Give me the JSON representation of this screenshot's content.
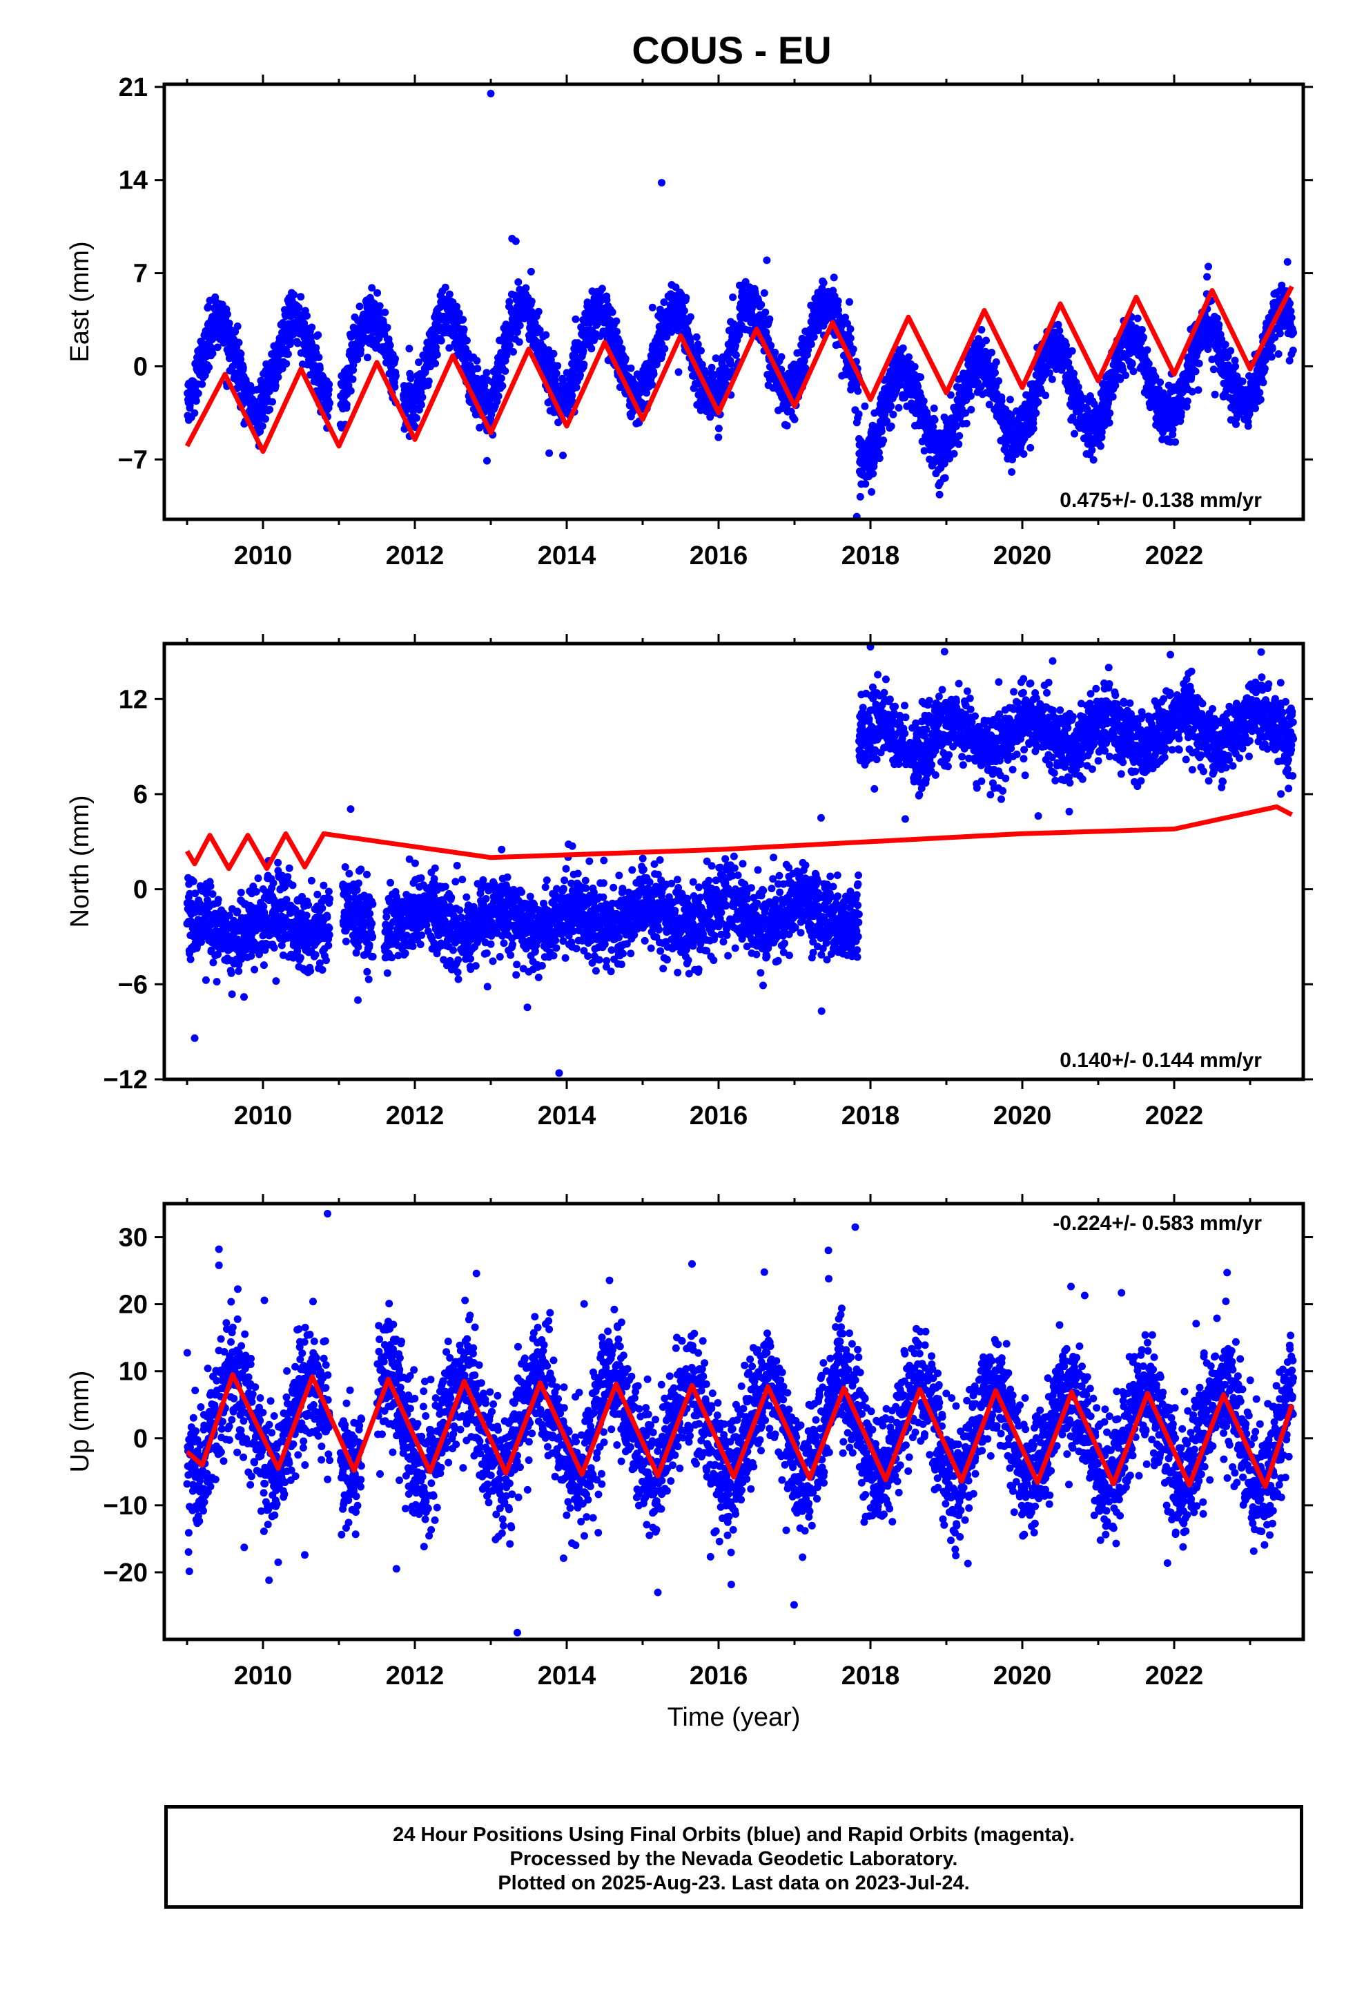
{
  "title": "COUS - EU",
  "caption": {
    "line1": "24 Hour Positions Using Final Orbits (blue) and Rapid Orbits (magenta).",
    "line2": "Processed by the Nevada Geodetic Laboratory.",
    "line3": "Plotted on 2025-Aug-23. Last data on 2023-Jul-24."
  },
  "colors": {
    "observations": "#0000ff",
    "model": "#ff0000",
    "axes": "#000000"
  },
  "chart_data": [
    {
      "type": "scatter",
      "component": "east",
      "title": "COUS - EU",
      "xlabel": "",
      "ylabel": "East (mm)",
      "xlim": [
        2008.7,
        2023.7
      ],
      "ylim": [
        -11.5,
        21.2
      ],
      "x_ticks": [
        2010,
        2012,
        2014,
        2016,
        2018,
        2020,
        2022
      ],
      "y_ticks": [
        -7,
        0,
        7,
        14,
        21
      ],
      "y_tick_labels": [
        "−7",
        "0",
        "7",
        "14",
        "21"
      ],
      "rate_label": "0.475+/- 0.138 mm/yr",
      "rate_position": "bottom-right",
      "grid": false,
      "observations": {
        "name": "24 hour positions (final orbits)",
        "date_range": [
          "2009-01",
          "2023-07-24"
        ],
        "segments": [
          {
            "start": 2009.0,
            "end": 2017.85,
            "annual_amplitude": 3.3,
            "peak_phase": 0.42,
            "offset_start": 0.0,
            "offset_end": 1.5,
            "noise_sd": 1.0
          },
          {
            "start": 2017.85,
            "end": 2023.57,
            "annual_amplitude": 3.2,
            "peak_phase": 0.42,
            "offset_start": -4.0,
            "offset_end": 0.8,
            "noise_sd": 1.0
          }
        ],
        "gaps": [
          [
            2010.88,
            2011.02
          ],
          [
            2011.75,
            2011.85
          ]
        ],
        "outliers": [
          {
            "x": 2013.0,
            "y": 20.5
          },
          {
            "x": 2015.25,
            "y": 13.8
          },
          {
            "x": 2013.28,
            "y": 9.6
          },
          {
            "x": 2013.33,
            "y": 9.4
          },
          {
            "x": 2017.82,
            "y": -11.3
          },
          {
            "x": 2012.95,
            "y": -7.1
          },
          {
            "x": 2013.95,
            "y": -6.7
          },
          {
            "x": 2022.45,
            "y": 7.5
          }
        ]
      },
      "model": {
        "name": "model fit",
        "points": [
          {
            "x": 2009.0,
            "y": -6.0
          },
          {
            "x": 2009.5,
            "y": -0.6
          },
          {
            "x": 2010.0,
            "y": -6.4
          },
          {
            "x": 2010.5,
            "y": -0.2
          },
          {
            "x": 2011.0,
            "y": -6.0
          },
          {
            "x": 2011.5,
            "y": 0.3
          },
          {
            "x": 2012.0,
            "y": -5.5
          },
          {
            "x": 2012.5,
            "y": 0.8
          },
          {
            "x": 2013.0,
            "y": -5.0
          },
          {
            "x": 2013.5,
            "y": 1.3
          },
          {
            "x": 2014.0,
            "y": -4.5
          },
          {
            "x": 2014.5,
            "y": 1.8
          },
          {
            "x": 2015.0,
            "y": -4.0
          },
          {
            "x": 2015.5,
            "y": 2.3
          },
          {
            "x": 2016.0,
            "y": -3.5
          },
          {
            "x": 2016.5,
            "y": 2.8
          },
          {
            "x": 2017.0,
            "y": -3.0
          },
          {
            "x": 2017.5,
            "y": 3.3
          },
          {
            "x": 2018.0,
            "y": -2.5
          },
          {
            "x": 2018.5,
            "y": 3.7
          },
          {
            "x": 2019.0,
            "y": -2.0
          },
          {
            "x": 2019.5,
            "y": 4.2
          },
          {
            "x": 2020.0,
            "y": -1.6
          },
          {
            "x": 2020.5,
            "y": 4.7
          },
          {
            "x": 2021.0,
            "y": -1.1
          },
          {
            "x": 2021.5,
            "y": 5.2
          },
          {
            "x": 2022.0,
            "y": -0.6
          },
          {
            "x": 2022.5,
            "y": 5.7
          },
          {
            "x": 2023.0,
            "y": -0.2
          },
          {
            "x": 2023.55,
            "y": 6.0
          }
        ]
      }
    },
    {
      "type": "scatter",
      "component": "north",
      "xlabel": "",
      "ylabel": "North (mm)",
      "xlim": [
        2008.7,
        2023.7
      ],
      "ylim": [
        -12,
        15.5
      ],
      "x_ticks": [
        2010,
        2012,
        2014,
        2016,
        2018,
        2020,
        2022
      ],
      "y_ticks": [
        -12,
        -6,
        0,
        6,
        12
      ],
      "y_tick_labels": [
        "−12",
        "−6",
        "0",
        "6",
        "12"
      ],
      "rate_label": "0.140+/- 0.144 mm/yr",
      "rate_position": "bottom-right",
      "grid": false,
      "observations": {
        "name": "24 hour positions (final orbits)",
        "date_range": [
          "2009-01",
          "2023-07-24"
        ],
        "segments": [
          {
            "start": 2009.0,
            "end": 2017.85,
            "annual_amplitude": 0.8,
            "peak_phase": 0.1,
            "offset_start": -2.4,
            "offset_end": -1.4,
            "noise_sd": 1.2
          },
          {
            "start": 2017.85,
            "end": 2023.57,
            "annual_amplitude": 1.0,
            "peak_phase": 0.1,
            "offset_start": 9.4,
            "offset_end": 10.3,
            "noise_sd": 1.1
          }
        ],
        "gaps": [
          [
            2010.88,
            2011.05
          ],
          [
            2011.45,
            2011.6
          ]
        ],
        "outliers": [
          {
            "x": 2009.1,
            "y": -9.4
          },
          {
            "x": 2013.9,
            "y": -11.6
          },
          {
            "x": 2018.0,
            "y": 15.3
          },
          {
            "x": 2021.95,
            "y": 14.8
          },
          {
            "x": 2020.4,
            "y": 14.4
          },
          {
            "x": 2011.25,
            "y": -7.0
          },
          {
            "x": 2009.75,
            "y": -6.8
          },
          {
            "x": 2017.35,
            "y": 4.5
          }
        ]
      },
      "model": {
        "name": "model fit",
        "points": [
          {
            "x": 2009.0,
            "y": 2.4
          },
          {
            "x": 2009.1,
            "y": 1.6
          },
          {
            "x": 2009.3,
            "y": 3.4
          },
          {
            "x": 2009.55,
            "y": 1.3
          },
          {
            "x": 2009.8,
            "y": 3.4
          },
          {
            "x": 2010.05,
            "y": 1.3
          },
          {
            "x": 2010.3,
            "y": 3.5
          },
          {
            "x": 2010.55,
            "y": 1.4
          },
          {
            "x": 2010.8,
            "y": 3.5
          },
          {
            "x": 2013.0,
            "y": 2.0
          },
          {
            "x": 2016.0,
            "y": 2.5
          },
          {
            "x": 2018.0,
            "y": 3.0
          },
          {
            "x": 2020.0,
            "y": 3.5
          },
          {
            "x": 2022.0,
            "y": 3.8
          },
          {
            "x": 2023.35,
            "y": 5.2
          },
          {
            "x": 2023.55,
            "y": 4.7
          }
        ]
      }
    },
    {
      "type": "scatter",
      "component": "up",
      "xlabel": "Time (year)",
      "ylabel": "Up (mm)",
      "xlim": [
        2008.7,
        2023.7
      ],
      "ylim": [
        -30,
        35
      ],
      "x_ticks": [
        2010,
        2012,
        2014,
        2016,
        2018,
        2020,
        2022
      ],
      "y_ticks": [
        -20,
        -10,
        0,
        10,
        20,
        30
      ],
      "y_tick_labels": [
        "−20",
        "−10",
        "0",
        "10",
        "20",
        "30"
      ],
      "rate_label": "-0.224+/- 0.583 mm/yr",
      "rate_position": "top-right",
      "grid": false,
      "observations": {
        "name": "24 hour positions (final orbits)",
        "date_range": [
          "2009-01",
          "2023-07-24"
        ],
        "segments": [
          {
            "start": 2009.0,
            "end": 2023.57,
            "annual_amplitude": 7.0,
            "peak_phase": 0.62,
            "offset_start": 2.5,
            "offset_end": 0.0,
            "noise_sd": 4.5
          }
        ],
        "gaps": [
          [
            2010.88,
            2011.02
          ],
          [
            2011.3,
            2011.5
          ]
        ],
        "outliers": [
          {
            "x": 2010.85,
            "y": 33.5
          },
          {
            "x": 2017.8,
            "y": 31.5
          },
          {
            "x": 2009.42,
            "y": 28.2
          },
          {
            "x": 2009.42,
            "y": 25.8
          },
          {
            "x": 2015.65,
            "y": 26.0
          },
          {
            "x": 2017.45,
            "y": 23.8
          },
          {
            "x": 2013.35,
            "y": -29.0
          },
          {
            "x": 2015.2,
            "y": -23.0
          },
          {
            "x": 2010.2,
            "y": -18.5
          },
          {
            "x": 2010.55,
            "y": -17.4
          }
        ]
      },
      "model": {
        "name": "model fit",
        "points": [
          {
            "x": 2009.0,
            "y": -2.0
          },
          {
            "x": 2009.2,
            "y": -4.0
          },
          {
            "x": 2009.6,
            "y": 9.5
          },
          {
            "x": 2010.2,
            "y": -4.5
          },
          {
            "x": 2010.65,
            "y": 9.2
          },
          {
            "x": 2011.2,
            "y": -4.8
          },
          {
            "x": 2011.65,
            "y": 8.8
          },
          {
            "x": 2012.2,
            "y": -5.0
          },
          {
            "x": 2012.65,
            "y": 8.5
          },
          {
            "x": 2013.2,
            "y": -5.2
          },
          {
            "x": 2013.65,
            "y": 8.3
          },
          {
            "x": 2014.2,
            "y": -5.4
          },
          {
            "x": 2014.65,
            "y": 8.1
          },
          {
            "x": 2015.2,
            "y": -5.6
          },
          {
            "x": 2015.65,
            "y": 7.9
          },
          {
            "x": 2016.2,
            "y": -5.8
          },
          {
            "x": 2016.65,
            "y": 7.7
          },
          {
            "x": 2017.2,
            "y": -6.0
          },
          {
            "x": 2017.65,
            "y": 7.5
          },
          {
            "x": 2018.2,
            "y": -6.2
          },
          {
            "x": 2018.65,
            "y": 7.3
          },
          {
            "x": 2019.2,
            "y": -6.4
          },
          {
            "x": 2019.65,
            "y": 7.1
          },
          {
            "x": 2020.2,
            "y": -6.6
          },
          {
            "x": 2020.65,
            "y": 6.9
          },
          {
            "x": 2021.2,
            "y": -6.8
          },
          {
            "x": 2021.65,
            "y": 6.7
          },
          {
            "x": 2022.2,
            "y": -7.0
          },
          {
            "x": 2022.65,
            "y": 6.5
          },
          {
            "x": 2023.2,
            "y": -7.2
          },
          {
            "x": 2023.55,
            "y": 5.0
          }
        ]
      }
    }
  ]
}
